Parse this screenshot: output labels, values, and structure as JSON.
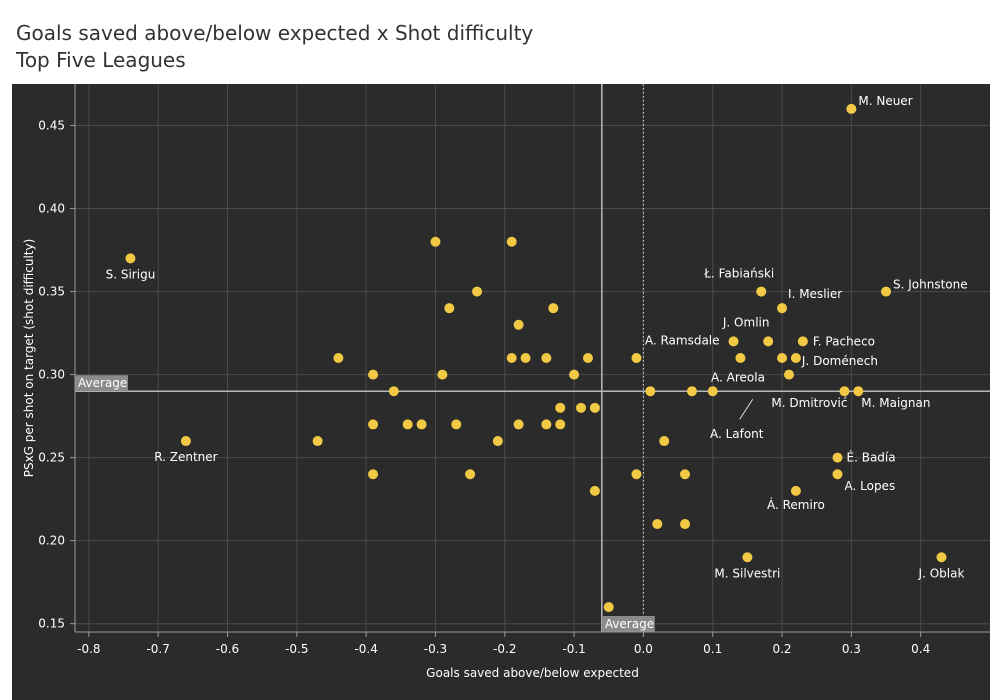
{
  "chart_data": {
    "type": "scatter",
    "title": "Goals saved above/below expected x Shot difficulty",
    "subtitle": "Top Five Leagues",
    "xlabel": "Goals saved above/below expected",
    "ylabel": "PSxG per shot on target (shot difficulty)",
    "xlim": [
      -0.82,
      0.5
    ],
    "ylim": [
      0.145,
      0.475
    ],
    "xticks": [
      "-0.8",
      "-0.7",
      "-0.6",
      "-0.5",
      "-0.4",
      "-0.3",
      "-0.2",
      "-0.1",
      "0.0",
      "0.1",
      "0.2",
      "0.3",
      "0.4"
    ],
    "yticks": [
      "0.15",
      "0.20",
      "0.25",
      "0.30",
      "0.35",
      "0.40",
      "0.45"
    ],
    "grid": true,
    "colors": {
      "background": "#2b2b2b",
      "point": "#f2c945",
      "grid": "#4a4a4a",
      "text": "#ffffff",
      "average_line": "#b8b8b8",
      "average_label_bg": "#8a8a8a"
    },
    "average_x": -0.06,
    "average_y": 0.29,
    "average_label": "Average",
    "points": [
      {
        "x": 0.3,
        "y": 0.46,
        "label": "M. Neuer"
      },
      {
        "x": -0.74,
        "y": 0.37,
        "label": "S. Sirigu"
      },
      {
        "x": -0.66,
        "y": 0.26,
        "label": "R. Zentner"
      },
      {
        "x": 0.35,
        "y": 0.35,
        "label": "S. Johnstone"
      },
      {
        "x": 0.17,
        "y": 0.35,
        "label": "Ł. Fabiański"
      },
      {
        "x": 0.2,
        "y": 0.34,
        "label": "I. Meslier"
      },
      {
        "x": 0.18,
        "y": 0.32,
        "label": "J. Omlin"
      },
      {
        "x": 0.23,
        "y": 0.32,
        "label": "F. Pacheco"
      },
      {
        "x": 0.13,
        "y": 0.32,
        "label": "A. Ramsdale"
      },
      {
        "x": 0.22,
        "y": 0.31,
        "label": "J. Doménech"
      },
      {
        "x": 0.14,
        "y": 0.31,
        "label": ""
      },
      {
        "x": 0.2,
        "y": 0.31,
        "label": ""
      },
      {
        "x": 0.21,
        "y": 0.3,
        "label": "A. Areola"
      },
      {
        "x": 0.29,
        "y": 0.29,
        "label": "M. Dmitrović"
      },
      {
        "x": 0.31,
        "y": 0.29,
        "label": "M. Maignan"
      },
      {
        "x": 0.1,
        "y": 0.29,
        "label": "A. Lafont"
      },
      {
        "x": 0.28,
        "y": 0.25,
        "label": "É. Badía"
      },
      {
        "x": 0.28,
        "y": 0.24,
        "label": "A. Lopes"
      },
      {
        "x": 0.22,
        "y": 0.23,
        "label": "Á. Remiro"
      },
      {
        "x": 0.15,
        "y": 0.19,
        "label": "M. Silvestri"
      },
      {
        "x": 0.43,
        "y": 0.19,
        "label": "J. Oblak"
      },
      {
        "x": -0.3,
        "y": 0.38,
        "label": ""
      },
      {
        "x": -0.19,
        "y": 0.38,
        "label": ""
      },
      {
        "x": -0.24,
        "y": 0.35,
        "label": ""
      },
      {
        "x": -0.28,
        "y": 0.34,
        "label": ""
      },
      {
        "x": -0.13,
        "y": 0.34,
        "label": ""
      },
      {
        "x": -0.18,
        "y": 0.33,
        "label": ""
      },
      {
        "x": -0.44,
        "y": 0.31,
        "label": ""
      },
      {
        "x": -0.19,
        "y": 0.31,
        "label": ""
      },
      {
        "x": -0.17,
        "y": 0.31,
        "label": ""
      },
      {
        "x": -0.14,
        "y": 0.31,
        "label": ""
      },
      {
        "x": -0.08,
        "y": 0.31,
        "label": ""
      },
      {
        "x": -0.01,
        "y": 0.31,
        "label": ""
      },
      {
        "x": -0.39,
        "y": 0.3,
        "label": ""
      },
      {
        "x": -0.29,
        "y": 0.3,
        "label": ""
      },
      {
        "x": -0.1,
        "y": 0.3,
        "label": ""
      },
      {
        "x": -0.36,
        "y": 0.29,
        "label": ""
      },
      {
        "x": 0.01,
        "y": 0.29,
        "label": ""
      },
      {
        "x": 0.07,
        "y": 0.29,
        "label": ""
      },
      {
        "x": -0.12,
        "y": 0.28,
        "label": ""
      },
      {
        "x": -0.09,
        "y": 0.28,
        "label": ""
      },
      {
        "x": -0.07,
        "y": 0.28,
        "label": ""
      },
      {
        "x": -0.39,
        "y": 0.27,
        "label": ""
      },
      {
        "x": -0.34,
        "y": 0.27,
        "label": ""
      },
      {
        "x": -0.32,
        "y": 0.27,
        "label": ""
      },
      {
        "x": -0.27,
        "y": 0.27,
        "label": ""
      },
      {
        "x": -0.18,
        "y": 0.27,
        "label": ""
      },
      {
        "x": -0.14,
        "y": 0.27,
        "label": ""
      },
      {
        "x": -0.12,
        "y": 0.27,
        "label": ""
      },
      {
        "x": -0.47,
        "y": 0.26,
        "label": ""
      },
      {
        "x": -0.21,
        "y": 0.26,
        "label": ""
      },
      {
        "x": 0.03,
        "y": 0.26,
        "label": ""
      },
      {
        "x": -0.39,
        "y": 0.24,
        "label": ""
      },
      {
        "x": -0.25,
        "y": 0.24,
        "label": ""
      },
      {
        "x": -0.01,
        "y": 0.24,
        "label": ""
      },
      {
        "x": 0.06,
        "y": 0.24,
        "label": ""
      },
      {
        "x": -0.07,
        "y": 0.23,
        "label": ""
      },
      {
        "x": 0.02,
        "y": 0.21,
        "label": ""
      },
      {
        "x": 0.06,
        "y": 0.21,
        "label": ""
      },
      {
        "x": -0.05,
        "y": 0.16,
        "label": ""
      }
    ]
  }
}
